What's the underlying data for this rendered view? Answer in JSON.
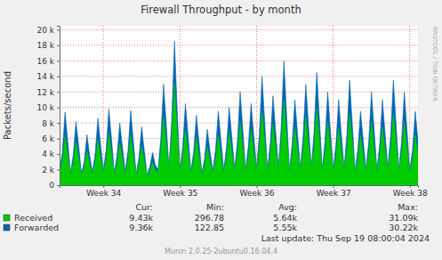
{
  "chart_data": {
    "type": "area",
    "title": "Firewall Throughput - by month",
    "y_label": "Packets/second",
    "watermark": "RRDTOOL / TOBI OETIKER",
    "last_update": "Last update: Thu Sep 19 08:00:04 2024",
    "credit": "Munin 2.0.25-2ubuntu0.16.04.4",
    "grid": true,
    "legend": "bottom",
    "ylim": [
      0,
      20500
    ],
    "yticks": [
      0,
      {
        "value": 2000,
        "label": "2 k"
      },
      {
        "value": 4000,
        "label": "4 k"
      },
      {
        "value": 6000,
        "label": "6 k"
      },
      {
        "value": 8000,
        "label": "8 k"
      },
      {
        "value": 10000,
        "label": "10 k"
      },
      {
        "value": 12000,
        "label": "12 k"
      },
      {
        "value": 14000,
        "label": "14 k"
      },
      {
        "value": 16000,
        "label": "16 k"
      },
      {
        "value": 18000,
        "label": "18 k"
      },
      {
        "value": 20000,
        "label": "20 k"
      }
    ],
    "categories": [
      null,
      null,
      null,
      null,
      null,
      null,
      null,
      null,
      null,
      null,
      null,
      null,
      null,
      null,
      null,
      null,
      "Week 34",
      null,
      null,
      null,
      null,
      null,
      null,
      null,
      null,
      null,
      null,
      null,
      null,
      null,
      null,
      null,
      null,
      null,
      null,
      null,
      null,
      null,
      null,
      null,
      null,
      null,
      null,
      null,
      "Week 35",
      null,
      null,
      null,
      null,
      null,
      null,
      null,
      null,
      null,
      null,
      null,
      null,
      null,
      null,
      null,
      null,
      null,
      null,
      null,
      null,
      null,
      null,
      null,
      null,
      null,
      null,
      null,
      "Week 36",
      null,
      null,
      null,
      null,
      null,
      null,
      null,
      null,
      null,
      null,
      null,
      null,
      null,
      null,
      null,
      null,
      null,
      null,
      null,
      null,
      null,
      null,
      null,
      null,
      null,
      null,
      null,
      "Week 37",
      null,
      null,
      null,
      null,
      null,
      null,
      null,
      null,
      null,
      null,
      null,
      null,
      null,
      null,
      null,
      null,
      null,
      null,
      null,
      null,
      null,
      null,
      null,
      null,
      null,
      null,
      null,
      "Week 38",
      null,
      null,
      null
    ],
    "stats_columns": [
      "Cur:",
      "Min:",
      "Avg:",
      "Max:"
    ],
    "series": [
      {
        "name": "Received",
        "color": "#00cc00",
        "stats": [
          {
            "value": 9430,
            "label": "9.43k"
          },
          296.78,
          {
            "value": 5640,
            "label": "5.64k"
          },
          {
            "value": 31090,
            "label": "31.09k"
          }
        ],
        "values": [
          1500,
          3000,
          6200,
          3800,
          1400,
          2800,
          5600,
          3400,
          1300,
          2200,
          4400,
          2700,
          1400,
          2900,
          5800,
          3500,
          1600,
          3300,
          6600,
          4000,
          1400,
          2700,
          5400,
          3300,
          1500,
          3200,
          6400,
          3800,
          1300,
          2500,
          5000,
          3000,
          1100,
          1800,
          2900,
          1900,
          1700,
          4300,
          8800,
          5300,
          1900,
          6000,
          13000,
          6600,
          1700,
          3600,
          7100,
          4300,
          1500,
          3100,
          6100,
          3700,
          1400,
          2500,
          4900,
          3000,
          1600,
          3200,
          6400,
          3900,
          1700,
          3400,
          6800,
          4100,
          1800,
          4000,
          8100,
          4800,
          1700,
          3600,
          7100,
          4300,
          1900,
          4600,
          9500,
          5500,
          1700,
          3800,
          7800,
          4700,
          2000,
          5300,
          10800,
          6200,
          1700,
          3700,
          7400,
          4500,
          1900,
          4400,
          8800,
          5200,
          2000,
          4800,
          9800,
          5800,
          1800,
          4000,
          8100,
          4800,
          1700,
          3700,
          7400,
          4500,
          1900,
          4500,
          9100,
          5400,
          1600,
          3200,
          6400,
          3900,
          1800,
          4000,
          8100,
          4800,
          1700,
          3700,
          7400,
          4500,
          1900,
          4500,
          9100,
          5400,
          1800,
          4000,
          8100,
          4800,
          1600,
          3200,
          6400,
          3900
        ]
      },
      {
        "name": "Forwarded",
        "color": "#0066b3",
        "stats": [
          {
            "value": 9360,
            "label": "9.36k"
          },
          122.85,
          {
            "value": 5550,
            "label": "5.55k"
          },
          {
            "value": 30220,
            "label": "30.22k"
          }
        ],
        "values": [
          1800,
          4200,
          9400,
          5600,
          1600,
          3900,
          8200,
          5000,
          1500,
          3000,
          6500,
          3800,
          1700,
          4000,
          8600,
          5200,
          1900,
          4500,
          9800,
          5900,
          1600,
          3800,
          8000,
          4800,
          1800,
          4400,
          9600,
          5500,
          1500,
          3500,
          7500,
          4300,
          1300,
          2400,
          4200,
          2600,
          2000,
          6000,
          13000,
          7800,
          2200,
          8500,
          18500,
          9500,
          2000,
          5000,
          10500,
          6200,
          1800,
          4300,
          9000,
          5400,
          1600,
          3400,
          7200,
          4300,
          1900,
          4500,
          9500,
          5700,
          2000,
          4800,
          10000,
          6000,
          2100,
          5600,
          12000,
          7000,
          2000,
          5000,
          10500,
          6300,
          2200,
          6500,
          14000,
          8000,
          2000,
          5400,
          11500,
          6800,
          2300,
          7500,
          16000,
          9000,
          2000,
          5200,
          11000,
          6500,
          2200,
          6200,
          13000,
          7600,
          2300,
          6800,
          14500,
          8400,
          2100,
          5600,
          12000,
          7000,
          2000,
          5200,
          11000,
          6500,
          2200,
          6400,
          13500,
          7800,
          1900,
          4500,
          9500,
          5700,
          2100,
          5600,
          12000,
          7000,
          2000,
          5200,
          11000,
          6500,
          2200,
          6400,
          13500,
          7800,
          2100,
          5600,
          12000,
          7000,
          1900,
          4500,
          9500,
          5700
        ]
      }
    ]
  }
}
